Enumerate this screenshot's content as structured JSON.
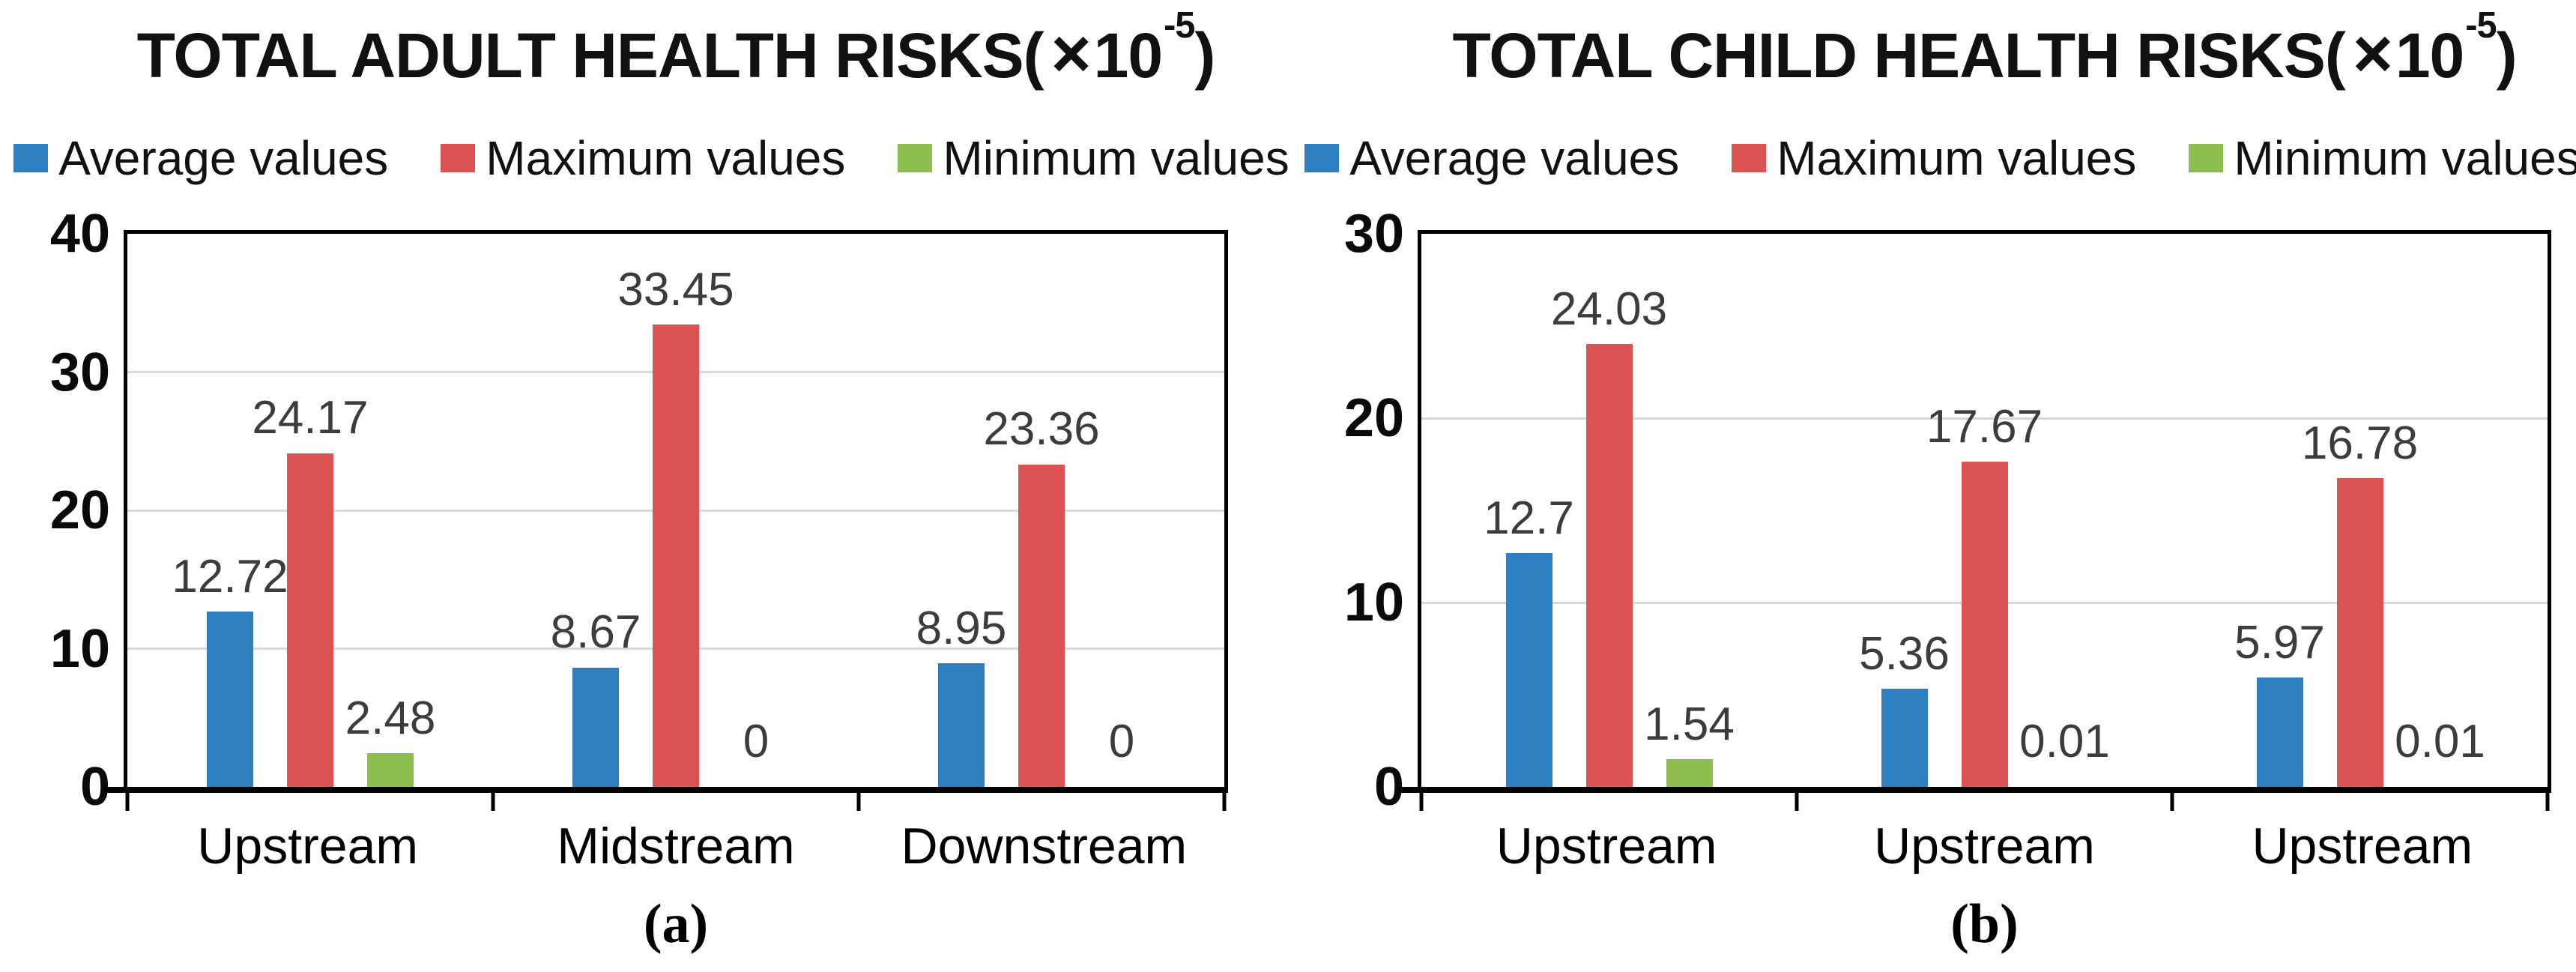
{
  "colors": {
    "average": "#2E80C0",
    "maximum": "#DB5353",
    "minimum": "#8EBE4F",
    "gridline": "#D9D9D9",
    "frame": "#000000",
    "value_label": "#3C3C3C"
  },
  "legend": [
    {
      "key": "average",
      "label": "Average values"
    },
    {
      "key": "maximum",
      "label": "Maximum values"
    },
    {
      "key": "minimum",
      "label": "Minimum values"
    }
  ],
  "chart_data": [
    {
      "type": "bar",
      "title": {
        "prefix": "TOTAL ADULT HEALTH RISKS(",
        "times": "×",
        "base": "10",
        "exponent": "-5",
        "suffix": ")"
      },
      "caption": "(a)",
      "categories": [
        "Upstream",
        "Midstream",
        "Downstream"
      ],
      "series": [
        {
          "name": "Average values",
          "color_key": "average",
          "values": [
            12.72,
            8.67,
            8.95
          ]
        },
        {
          "name": "Maximum values",
          "color_key": "maximum",
          "values": [
            24.17,
            33.45,
            23.36
          ]
        },
        {
          "name": "Minimum values",
          "color_key": "minimum",
          "values": [
            2.48,
            0,
            0
          ]
        }
      ],
      "value_labels": [
        [
          "12.72",
          "8.67",
          "8.95"
        ],
        [
          "24.17",
          "33.45",
          "23.36"
        ],
        [
          "2.48",
          "0",
          "0"
        ]
      ],
      "ylim": [
        0,
        40
      ],
      "ytick_step": 10,
      "yticks": [
        "0",
        "10",
        "20",
        "30",
        "40"
      ],
      "grid": true,
      "legend_position": "top"
    },
    {
      "type": "bar",
      "title": {
        "prefix": "TOTAL CHILD HEALTH RISKS(",
        "times": "×",
        "base": "10",
        "exponent": "-5",
        "suffix": ")"
      },
      "caption": "(b)",
      "categories": [
        "Upstream",
        "Upstream",
        "Upstream"
      ],
      "series": [
        {
          "name": "Average values",
          "color_key": "average",
          "values": [
            12.7,
            5.36,
            5.97
          ]
        },
        {
          "name": "Maximum values",
          "color_key": "maximum",
          "values": [
            24.03,
            17.67,
            16.78
          ]
        },
        {
          "name": "Minimum values",
          "color_key": "minimum",
          "values": [
            1.54,
            0.01,
            0.01
          ]
        }
      ],
      "value_labels": [
        [
          "12.7",
          "5.36",
          "5.97"
        ],
        [
          "24.03",
          "17.67",
          "16.78"
        ],
        [
          "1.54",
          "0.01",
          "0.01"
        ]
      ],
      "ylim": [
        0,
        30
      ],
      "ytick_step": 10,
      "yticks": [
        "0",
        "10",
        "20",
        "30"
      ],
      "grid": true,
      "legend_position": "top"
    }
  ]
}
